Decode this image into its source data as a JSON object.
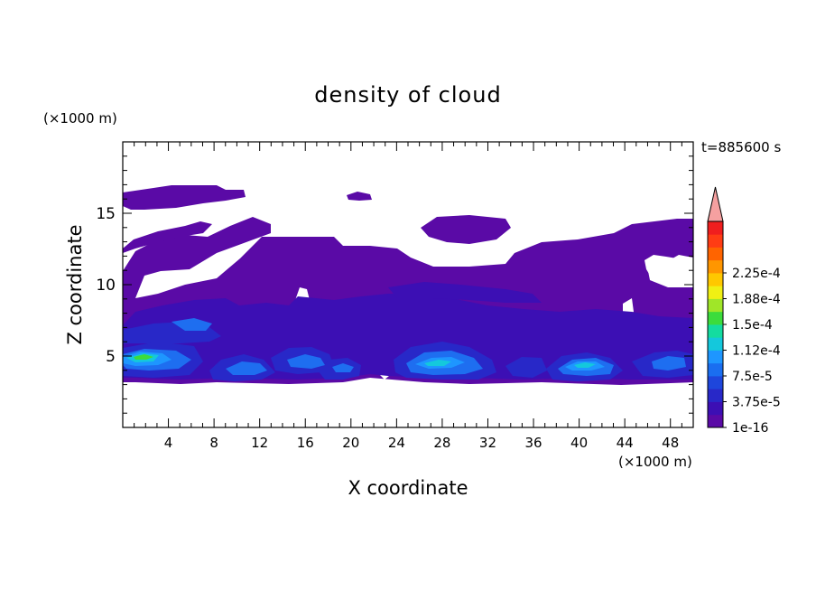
{
  "chart_data": {
    "type": "heatmap",
    "title": "density of cloud",
    "xlabel": "X coordinate",
    "ylabel": "Z coordinate",
    "x_unit": "(×1000 m)",
    "y_unit": "(×1000 m)",
    "time_label": "t=885600 s",
    "xlim": [
      0,
      50
    ],
    "ylim": [
      0,
      20
    ],
    "x_ticks": [
      4,
      8,
      12,
      16,
      20,
      24,
      28,
      32,
      36,
      40,
      44,
      48
    ],
    "y_ticks": [
      5,
      10,
      15
    ],
    "colorbar": {
      "levels": [
        1e-16,
        3.75e-05,
        7.5e-05,
        0.000112,
        0.00015,
        0.000188,
        0.000225
      ],
      "labels": [
        "1e-16",
        "3.75e-5",
        "7.5e-5",
        "1.12e-4",
        "1.5e-4",
        "1.88e-4",
        "2.25e-4"
      ],
      "colors": [
        "#5a0aa6",
        "#3c0fb4",
        "#2828c8",
        "#1e46dc",
        "#1a6ef0",
        "#1e96ff",
        "#14c8dc",
        "#14dca0",
        "#3cdc3c",
        "#a0e628",
        "#f0f014",
        "#ffc800",
        "#ff9600",
        "#ff6400",
        "#ff3c14",
        "#f01e1e"
      ],
      "extend_top_color": "#f5a0a0"
    },
    "regions": [
      {
        "level": "1e-16",
        "description": "broad cloud layer z≈3.5–13 km spanning the whole domain, with upper patches up to z≈17 km and cloud-free holes"
      },
      {
        "level": "3.75e-5",
        "description": "lower dense band z≈3.5–8 km"
      },
      {
        "level": "7.5e-5",
        "description": "cells near z≈4–6 km at x≈1–6, 9–12, 14–17, 18–21, 25–31, 38–42, 46–50 km"
      },
      {
        "level": "1.12e-4",
        "description": "cores near z≈4.5–5 km at x≈1–4, 26–29, 39–41 km"
      },
      {
        "level": "1.5e-4",
        "description": "small core at x≈2 km, z≈5 km"
      }
    ]
  }
}
